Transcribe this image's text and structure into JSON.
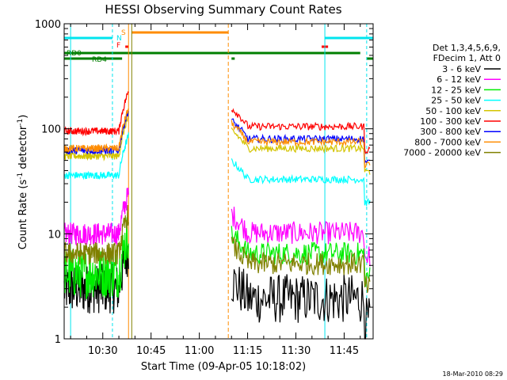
{
  "chart_data": {
    "type": "line",
    "title": "HESSI Observing Summary Count Rates",
    "xlabel": "Start Time (09-Apr-05 10:18:02)",
    "ylabel_main": "Count Rate (s",
    "ylabel_sup1": "-1",
    "ylabel_mid": " detector",
    "ylabel_sup2": "-1",
    "ylabel_end": ")",
    "y_scale": "log",
    "ylim": [
      1,
      1000
    ],
    "xlim": [
      "10:18",
      "11:54"
    ],
    "x_ticks": [
      "10:30",
      "10:45",
      "11:00",
      "11:15",
      "11:30",
      "11:45"
    ],
    "y_ticks": [
      "1",
      "10",
      "100",
      "1000"
    ],
    "footer": "18-Mar-2010 08:29",
    "legend_header": [
      "Det 1,3,4,5,6,9,",
      "FDecim 1, Att 0"
    ],
    "series": [
      {
        "name": "3 - 6 keV",
        "color": "#000000",
        "pre": 3.0,
        "post": 2.4
      },
      {
        "name": "6 - 12 keV",
        "color": "#ff00ff",
        "pre": 10.0,
        "post": 10.2
      },
      {
        "name": "12 - 25 keV",
        "color": "#00ee00",
        "pre": 4.2,
        "post": 6.5
      },
      {
        "name": "25 - 50 keV",
        "color": "#00ffff",
        "pre": 36.0,
        "post": 33.0
      },
      {
        "name": "50 - 100 keV",
        "color": "#d4c400",
        "pre": 55.0,
        "post": 65.0
      },
      {
        "name": "100 - 300 keV",
        "color": "#ff0000",
        "pre": 95.0,
        "post": 105.0
      },
      {
        "name": "300 - 800 keV",
        "color": "#0000ff",
        "pre": 62.0,
        "post": 80.0
      },
      {
        "name": "800 - 7000 keV",
        "color": "#ff8c00",
        "pre": 65.0,
        "post": 75.0
      },
      {
        "name": "7000 - 20000 keV",
        "color": "#808000",
        "pre": 6.5,
        "post": 5.2
      }
    ],
    "flag_labels": {
      "saa": "S",
      "night": "N",
      "flare": "F",
      "rd0": "RD0",
      "rd4": "RD4"
    }
  }
}
